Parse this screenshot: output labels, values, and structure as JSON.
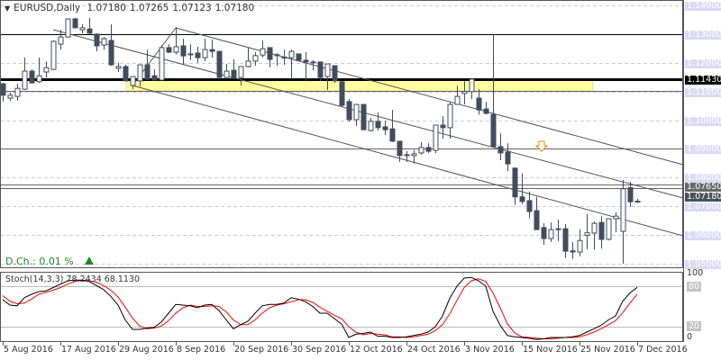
{
  "header": {
    "symbol": "EURUSD,Daily",
    "open": "1.07180",
    "high": "1.07265",
    "low": "1.07123",
    "close": "1.07180"
  },
  "daily_change": {
    "label": "D.Ch.: 0.01 %",
    "direction": "up",
    "color": "#1f8a1f"
  },
  "indicator": {
    "label": "Stoch(14,3,3) 78.2434 68.1130"
  },
  "colors": {
    "bear": "#414d5c",
    "bull": "#ffffff",
    "outline": "#414d5c",
    "zone": "#ffffa0",
    "k_line": "#000000",
    "d_line": "#ff0000",
    "grid": "#c8c8ee"
  },
  "chart_data": [
    {
      "type": "candlestick",
      "title": "EURUSD,Daily",
      "ylim": [
        1.05,
        1.14
      ],
      "grid": true,
      "x_ticks": [
        "5 Aug 2016",
        "17 Aug 2016",
        "29 Aug 2016",
        "8 Sep 2016",
        "20 Sep 2016",
        "30 Sep 2016",
        "12 Oct 2016",
        "24 Oct 2016",
        "3 Nov 2016",
        "15 Nov 2016",
        "25 Nov 2016",
        "7 Dec 2016"
      ],
      "y_ticks": [
        "1.14000",
        "1.13000",
        "1.12000",
        "1.11000",
        "1.10000",
        "1.09000",
        "1.08000",
        "1.07000",
        "1.06000",
        "1.05000"
      ],
      "price_labels": [
        {
          "text": "1.11430",
          "value": 1.1143,
          "style": "black"
        },
        {
          "text": "1.07650",
          "value": 1.0765,
          "style": "grey"
        },
        {
          "text": "1.07180",
          "value": 1.0718,
          "style": "dark"
        }
      ],
      "horizontal_lines": [
        {
          "value": 1.13,
          "style": "thin-black"
        },
        {
          "value": 1.1143,
          "style": "thick-black"
        },
        {
          "value": 1.1102,
          "style": "thin-grey"
        },
        {
          "value": 1.09,
          "style": "thin-grey"
        },
        {
          "value": 1.0775,
          "style": "thin-grey"
        },
        {
          "value": 1.0765,
          "style": "thin-grey"
        }
      ],
      "support_zone": {
        "from": 1.1102,
        "to": 1.1143
      },
      "ohlc": [
        [
          1.1127,
          1.113,
          1.1065,
          1.1087
        ],
        [
          1.1077,
          1.1096,
          1.1068,
          1.1087
        ],
        [
          1.1083,
          1.1127,
          1.1068,
          1.1111
        ],
        [
          1.1108,
          1.1218,
          1.1105,
          1.1171
        ],
        [
          1.1171,
          1.1177,
          1.1128,
          1.113
        ],
        [
          1.1134,
          1.1218,
          1.113,
          1.1155
        ],
        [
          1.1168,
          1.1205,
          1.1149,
          1.1183
        ],
        [
          1.1177,
          1.1278,
          1.1175,
          1.1275
        ],
        [
          1.1265,
          1.1315,
          1.1246,
          1.129
        ],
        [
          1.129,
          1.1355,
          1.1288,
          1.1353
        ],
        [
          1.1353,
          1.1356,
          1.132,
          1.1322
        ],
        [
          1.1315,
          1.1334,
          1.1303,
          1.1322
        ],
        [
          1.1318,
          1.1356,
          1.13,
          1.1303
        ],
        [
          1.13,
          1.1303,
          1.124,
          1.1259
        ],
        [
          1.1262,
          1.129,
          1.1246,
          1.1284
        ],
        [
          1.1278,
          1.1334,
          1.119,
          1.1193
        ],
        [
          1.1181,
          1.12,
          1.1168,
          1.1187
        ],
        [
          1.1187,
          1.1193,
          1.1137,
          1.1137
        ],
        [
          1.1121,
          1.1152,
          1.1108,
          1.1152
        ],
        [
          1.1137,
          1.1193,
          1.1118,
          1.1193
        ],
        [
          1.1193,
          1.1246,
          1.114,
          1.1143
        ],
        [
          1.1155,
          1.1177,
          1.1138,
          1.114
        ],
        [
          1.114,
          1.1262,
          1.1138,
          1.1253
        ],
        [
          1.1253,
          1.1265,
          1.1234,
          1.1237
        ],
        [
          1.1237,
          1.1325,
          1.123,
          1.1256
        ],
        [
          1.1259,
          1.1284,
          1.1193,
          1.1224
        ],
        [
          1.1231,
          1.1265,
          1.1209,
          1.1229
        ],
        [
          1.1234,
          1.1256,
          1.12,
          1.1218
        ],
        [
          1.1218,
          1.1284,
          1.1206,
          1.1246
        ],
        [
          1.1246,
          1.1281,
          1.1218,
          1.124
        ],
        [
          1.124,
          1.124,
          1.1143,
          1.1149
        ],
        [
          1.1149,
          1.1196,
          1.1143,
          1.1171
        ],
        [
          1.1174,
          1.1212,
          1.1143,
          1.1146
        ],
        [
          1.1149,
          1.1187,
          1.1121,
          1.1187
        ],
        [
          1.1187,
          1.1253,
          1.1184,
          1.1206
        ],
        [
          1.1206,
          1.1237,
          1.119,
          1.1225
        ],
        [
          1.1227,
          1.1278,
          1.1218,
          1.1249
        ],
        [
          1.1253,
          1.1253,
          1.1184,
          1.1212
        ],
        [
          1.1228,
          1.1234,
          1.119,
          1.1225
        ],
        [
          1.122,
          1.1246,
          1.1193,
          1.1218
        ],
        [
          1.1218,
          1.1246,
          1.1143,
          1.124
        ],
        [
          1.1231,
          1.1231,
          1.1209,
          1.1209
        ],
        [
          1.1209,
          1.1237,
          1.1137,
          1.1203
        ],
        [
          1.1203,
          1.1209,
          1.1174,
          1.1203
        ],
        [
          1.1203,
          1.1203,
          1.1137,
          1.1149
        ],
        [
          1.1152,
          1.1196,
          1.1105,
          1.1196
        ],
        [
          1.119,
          1.119,
          1.113,
          1.1137
        ],
        [
          1.1134,
          1.1137,
          1.1046,
          1.1052
        ],
        [
          1.1065,
          1.1074,
          1.0995,
          1.1002
        ],
        [
          1.1002,
          1.1055,
          1.098,
          1.1055
        ],
        [
          1.1055,
          1.1055,
          1.0967,
          1.0967
        ],
        [
          1.0964,
          1.1008,
          1.0961,
          1.0996
        ],
        [
          1.0996,
          1.1027,
          1.0964,
          1.0974
        ],
        [
          1.0977,
          1.0999,
          1.0949,
          1.0967
        ],
        [
          1.097,
          1.1036,
          1.0924,
          1.0927
        ],
        [
          1.0927,
          1.0927,
          1.0855,
          1.0877
        ],
        [
          1.088,
          1.0893,
          1.0855,
          1.0877
        ],
        [
          1.0877,
          1.0896,
          1.0849,
          1.0883
        ],
        [
          1.0886,
          1.0924,
          1.088,
          1.0905
        ],
        [
          1.0905,
          1.092,
          1.0886,
          1.0892
        ],
        [
          1.0895,
          1.0983,
          1.0886,
          1.0983
        ],
        [
          1.0983,
          1.1014,
          1.0936,
          1.0974
        ],
        [
          1.0974,
          1.1064,
          1.0936,
          1.1055
        ],
        [
          1.1055,
          1.112,
          1.1055,
          1.1083
        ],
        [
          1.1093,
          1.1136,
          1.1055,
          1.11
        ],
        [
          1.11,
          1.1143,
          1.1074,
          1.1143
        ],
        [
          1.1077,
          1.1108,
          1.102,
          1.1036
        ],
        [
          1.1039,
          1.1064,
          1.102,
          1.1024
        ],
        [
          1.102,
          1.1299,
          1.0905,
          1.0908
        ],
        [
          1.0908,
          1.0955,
          1.0861,
          1.0886
        ],
        [
          1.0889,
          1.092,
          1.0823,
          1.0848
        ],
        [
          1.0833,
          1.0836,
          1.0705,
          1.0733
        ],
        [
          1.0733,
          1.0815,
          1.0708,
          1.0717
        ],
        [
          1.072,
          1.0752,
          1.0658,
          1.0682
        ],
        [
          1.0685,
          1.0733,
          1.0619,
          1.0619
        ],
        [
          1.0626,
          1.0641,
          1.0566,
          1.0588
        ],
        [
          1.0588,
          1.0644,
          1.0576,
          1.0619
        ],
        [
          1.0622,
          1.0654,
          1.0579,
          1.0622
        ],
        [
          1.0622,
          1.0638,
          1.052,
          1.0544
        ],
        [
          1.0545,
          1.0576,
          1.0517,
          1.0541
        ],
        [
          1.0541,
          1.0619,
          1.0526,
          1.0581
        ],
        [
          1.0599,
          1.0673,
          1.055,
          1.0608
        ],
        [
          1.0607,
          1.0647,
          1.055,
          1.0641
        ],
        [
          1.0644,
          1.0666,
          1.0553,
          1.0585
        ],
        [
          1.0585,
          1.0657,
          1.0582,
          1.0657
        ],
        [
          1.0657,
          1.0679,
          1.061,
          1.0666
        ],
        [
          1.0613,
          1.0792,
          1.05,
          1.0761
        ],
        [
          1.0765,
          1.0786,
          1.0698,
          1.0716
        ],
        [
          1.0718,
          1.07265,
          1.07123,
          1.0718
        ]
      ]
    },
    {
      "type": "line",
      "title": "Stoch(14,3,3)",
      "ylim": [
        0,
        100
      ],
      "y_ticks": [
        "100",
        "80",
        "20",
        "0"
      ],
      "levels": [
        80,
        20
      ],
      "series": [
        {
          "name": "%K",
          "color": "#000000",
          "values": [
            60,
            52,
            51,
            63,
            68,
            72,
            73,
            78,
            83,
            88,
            89,
            89,
            87,
            81,
            75,
            65,
            52,
            30,
            16,
            16,
            18,
            19,
            27,
            40,
            53,
            52,
            51,
            48,
            52,
            53,
            44,
            30,
            17,
            23,
            28,
            40,
            51,
            53,
            53,
            55,
            63,
            61,
            57,
            50,
            40,
            40,
            32,
            24,
            4,
            9,
            10,
            12,
            6,
            6,
            4,
            4,
            5,
            7,
            9,
            12,
            20,
            36,
            62,
            80,
            92,
            93,
            88,
            80,
            43,
            22,
            7,
            5,
            4,
            3,
            1,
            2,
            4,
            4,
            4,
            5,
            7,
            12,
            17,
            22,
            30,
            36,
            58,
            70,
            78.2434
          ]
        },
        {
          "name": "%D",
          "color": "#ff0000",
          "values": [
            66,
            58,
            54,
            55,
            61,
            68,
            71,
            74,
            78,
            83,
            87,
            89,
            88,
            86,
            81,
            74,
            64,
            49,
            33,
            21,
            17,
            18,
            21,
            29,
            40,
            48,
            52,
            50,
            50,
            51,
            50,
            42,
            30,
            23,
            23,
            30,
            40,
            48,
            52,
            54,
            57,
            60,
            60,
            56,
            49,
            43,
            37,
            32,
            20,
            12,
            8,
            10,
            9,
            8,
            5,
            5,
            4,
            5,
            7,
            9,
            14,
            23,
            39,
            59,
            78,
            88,
            91,
            87,
            70,
            48,
            24,
            11,
            5,
            4,
            3,
            2,
            2,
            3,
            4,
            4,
            5,
            8,
            12,
            17,
            23,
            29,
            41,
            55,
            68.113
          ]
        }
      ]
    }
  ]
}
